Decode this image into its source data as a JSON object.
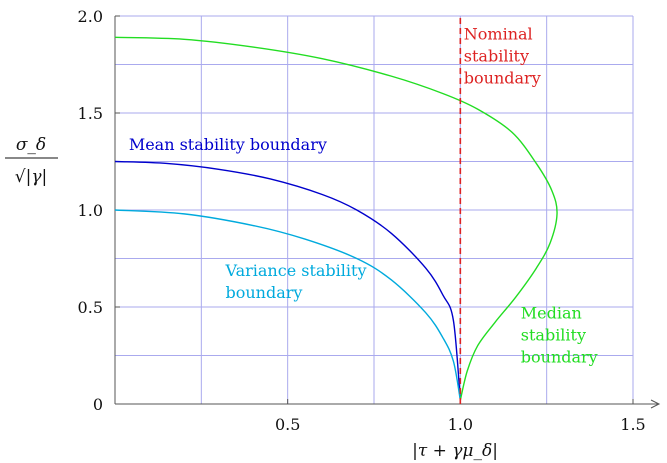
{
  "chart_data": {
    "type": "line",
    "xlabel": "|τ + γμ_δ|",
    "ylabel_num": "σ_δ",
    "ylabel_den": "√|γ|",
    "xlim": [
      0,
      1.5
    ],
    "ylim": [
      0,
      2.0
    ],
    "x_ticks": [
      "0.5",
      "1.0",
      "1.5"
    ],
    "x_tick_values": [
      0.5,
      1.0,
      1.5
    ],
    "y_ticks": [
      "0",
      "0.5",
      "1.0",
      "1.5",
      "2.0"
    ],
    "y_tick_values": [
      0,
      0.5,
      1.0,
      1.5,
      2.0
    ],
    "grid_x": [
      0.25,
      0.5,
      0.75,
      1.0,
      1.25
    ],
    "grid_y": [
      0.25,
      0.5,
      0.75,
      1.0,
      1.25,
      1.5,
      1.75
    ],
    "grid": true,
    "grid_color": "#aaaaee",
    "series": [
      {
        "name": "Mean stability boundary",
        "color": "#0000cc",
        "style": "solid",
        "points": [
          [
            0,
            1.25
          ],
          [
            0.15,
            1.24
          ],
          [
            0.3,
            1.21
          ],
          [
            0.45,
            1.16
          ],
          [
            0.6,
            1.08
          ],
          [
            0.7,
            1.0
          ],
          [
            0.8,
            0.88
          ],
          [
            0.9,
            0.7
          ],
          [
            0.95,
            0.56
          ],
          [
            0.98,
            0.43
          ],
          [
            1.0,
            0.02
          ]
        ]
      },
      {
        "name": "Variance stability boundary",
        "color": "#00aadd",
        "style": "solid",
        "points": [
          [
            0,
            1.0
          ],
          [
            0.2,
            0.98
          ],
          [
            0.4,
            0.92
          ],
          [
            0.55,
            0.85
          ],
          [
            0.7,
            0.75
          ],
          [
            0.8,
            0.64
          ],
          [
            0.9,
            0.47
          ],
          [
            0.95,
            0.34
          ],
          [
            0.98,
            0.22
          ],
          [
            1.0,
            0.02
          ]
        ]
      },
      {
        "name": "Median stability boundary",
        "color": "#22dd22",
        "style": "solid",
        "points": [
          [
            0,
            1.89
          ],
          [
            0.2,
            1.88
          ],
          [
            0.4,
            1.84
          ],
          [
            0.6,
            1.78
          ],
          [
            0.8,
            1.69
          ],
          [
            0.95,
            1.6
          ],
          [
            1.05,
            1.52
          ],
          [
            1.15,
            1.4
          ],
          [
            1.22,
            1.24
          ],
          [
            1.265,
            1.1
          ],
          [
            1.28,
            0.98
          ],
          [
            1.26,
            0.83
          ],
          [
            1.22,
            0.7
          ],
          [
            1.16,
            0.55
          ],
          [
            1.1,
            0.42
          ],
          [
            1.05,
            0.3
          ],
          [
            1.02,
            0.17
          ],
          [
            1.0,
            0.02
          ]
        ]
      },
      {
        "name": "Nominal stability boundary",
        "color": "#dd2222",
        "style": "dashed",
        "points": [
          [
            1.0,
            0
          ],
          [
            1.0,
            2.0
          ]
        ]
      }
    ],
    "annotations": [
      {
        "lines": [
          "Nominal",
          "stability",
          "boundary"
        ],
        "color": "#dd2222",
        "x": 1.01,
        "y": 1.88
      },
      {
        "lines": [
          "Mean stability boundary"
        ],
        "color": "#0000cc",
        "x": 0.04,
        "y": 1.31
      },
      {
        "lines": [
          "Variance stability",
          "boundary"
        ],
        "color": "#00aadd",
        "x": 0.32,
        "y": 0.66
      },
      {
        "lines": [
          "Median",
          "stability",
          "boundary"
        ],
        "color": "#22dd22",
        "x": 1.175,
        "y": 0.44
      }
    ]
  }
}
